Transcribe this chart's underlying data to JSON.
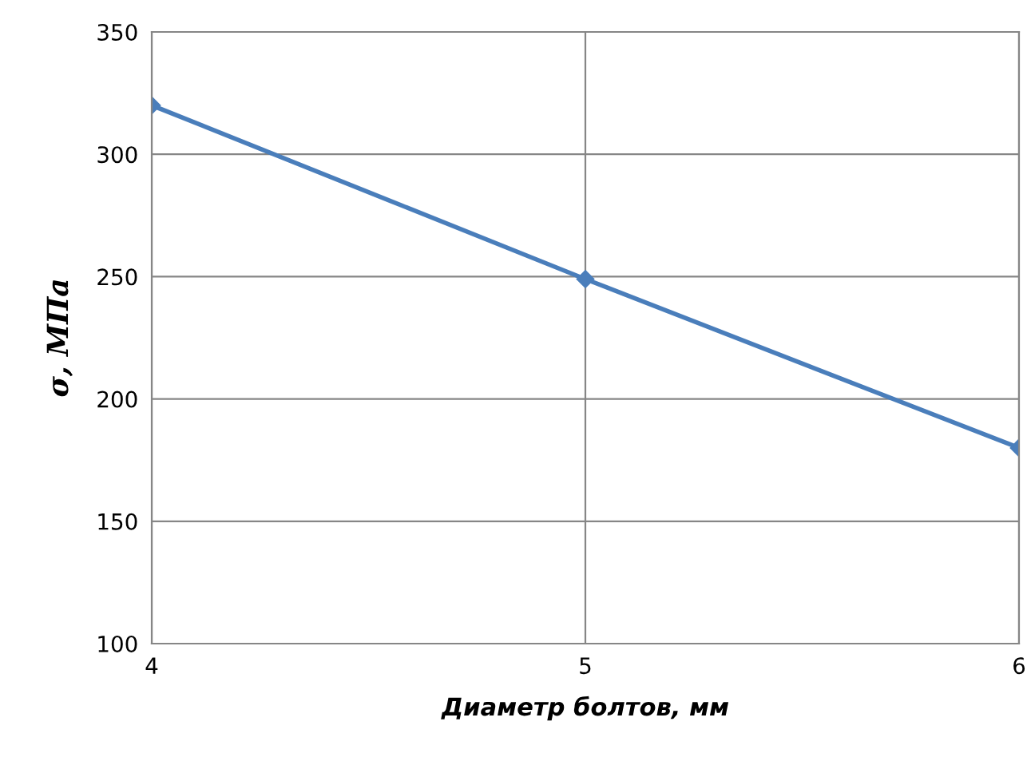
{
  "chart_data": {
    "type": "line",
    "xlabel": "Диаметр болтов, мм",
    "ylabel": "σ, МПа",
    "x": [
      4,
      5,
      6
    ],
    "series": [
      {
        "color": "#4a7ebb",
        "values": [
          320,
          249,
          180
        ]
      }
    ],
    "xlim": [
      4,
      6
    ],
    "xticks": [
      4,
      5,
      6
    ],
    "ylim": [
      100,
      350
    ],
    "yticks": [
      100,
      150,
      200,
      250,
      300,
      350
    ],
    "grid": true,
    "marker": "diamond",
    "line_style": "solid",
    "legend": false
  }
}
